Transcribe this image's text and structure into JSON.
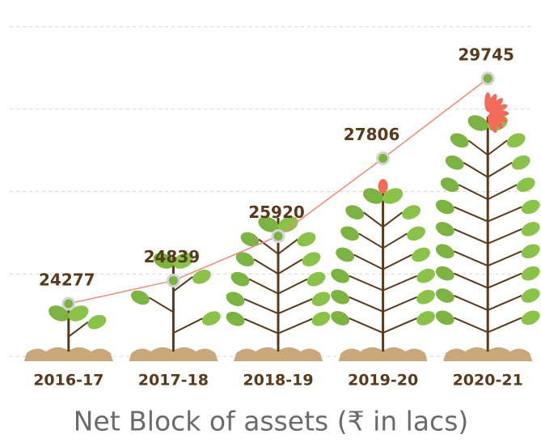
{
  "chart_data": {
    "type": "line",
    "title": "Net Block of assets (₹ in lacs)",
    "categories": [
      "2016-17",
      "2017-18",
      "2018-19",
      "2019-20",
      "2020-21"
    ],
    "values": [
      24277,
      24839,
      25920,
      27806,
      29745
    ],
    "color": "#f08a78",
    "marker_color": "#7cb342",
    "ylim": [
      23000,
      31000
    ],
    "yticks": [
      23000,
      25000,
      27000,
      29000,
      31000
    ],
    "grid": true
  }
}
